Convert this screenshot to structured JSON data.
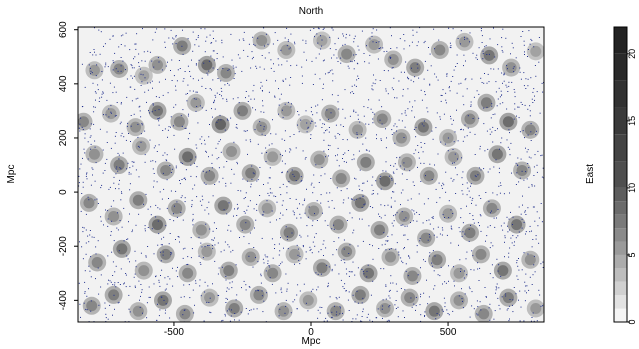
{
  "chart_data": {
    "type": "heatmap",
    "title": "North",
    "xlabel": "Mpc",
    "ylabel": "Mpc",
    "xlim": [
      -850,
      850
    ],
    "ylim": [
      -480,
      610
    ],
    "x_ticks": [
      -500,
      0,
      500
    ],
    "x_tick_labels": [
      "-500",
      "0",
      "500"
    ],
    "y_ticks": [
      -400,
      -200,
      0,
      200,
      400,
      600
    ],
    "y_tick_labels": [
      "-400",
      "-200",
      "0",
      "200",
      "400",
      "600"
    ],
    "grid": false,
    "overlay": {
      "type": "scatter",
      "color": "#1f2e8c",
      "description_count": 2500
    },
    "heatmap": {
      "color_low": "#f2f2f2",
      "color_high": "#1a1a1a",
      "blobs": [
        [
          -790,
          450,
          10
        ],
        [
          -700,
          455,
          12
        ],
        [
          -610,
          430,
          9
        ],
        [
          -560,
          470,
          11
        ],
        [
          -470,
          540,
          13
        ],
        [
          -380,
          470,
          15
        ],
        [
          -310,
          440,
          12
        ],
        [
          -180,
          560,
          11
        ],
        [
          -90,
          525,
          10
        ],
        [
          40,
          560,
          9
        ],
        [
          130,
          510,
          12
        ],
        [
          230,
          545,
          10
        ],
        [
          300,
          490,
          11
        ],
        [
          380,
          460,
          13
        ],
        [
          470,
          525,
          12
        ],
        [
          560,
          555,
          10
        ],
        [
          650,
          505,
          14
        ],
        [
          730,
          460,
          11
        ],
        [
          820,
          520,
          9
        ],
        [
          -830,
          260,
          12
        ],
        [
          -730,
          290,
          10
        ],
        [
          -640,
          240,
          11
        ],
        [
          -560,
          300,
          14
        ],
        [
          -480,
          260,
          12
        ],
        [
          -420,
          330,
          10
        ],
        [
          -330,
          250,
          16
        ],
        [
          -250,
          300,
          13
        ],
        [
          -180,
          240,
          11
        ],
        [
          -90,
          300,
          10
        ],
        [
          -20,
          250,
          9
        ],
        [
          70,
          290,
          12
        ],
        [
          170,
          230,
          10
        ],
        [
          260,
          270,
          12
        ],
        [
          330,
          200,
          11
        ],
        [
          410,
          240,
          14
        ],
        [
          500,
          200,
          10
        ],
        [
          580,
          270,
          12
        ],
        [
          640,
          330,
          13
        ],
        [
          720,
          260,
          15
        ],
        [
          800,
          230,
          12
        ],
        [
          -790,
          140,
          11
        ],
        [
          -700,
          100,
          13
        ],
        [
          -620,
          170,
          10
        ],
        [
          -530,
          80,
          12
        ],
        [
          -450,
          130,
          15
        ],
        [
          -370,
          60,
          12
        ],
        [
          -290,
          150,
          11
        ],
        [
          -220,
          70,
          13
        ],
        [
          -140,
          130,
          10
        ],
        [
          -60,
          60,
          14
        ],
        [
          30,
          120,
          11
        ],
        [
          110,
          50,
          12
        ],
        [
          200,
          110,
          13
        ],
        [
          270,
          40,
          15
        ],
        [
          350,
          110,
          11
        ],
        [
          430,
          60,
          12
        ],
        [
          520,
          130,
          10
        ],
        [
          600,
          60,
          13
        ],
        [
          680,
          140,
          14
        ],
        [
          770,
          80,
          12
        ],
        [
          -810,
          -40,
          12
        ],
        [
          -720,
          -90,
          11
        ],
        [
          -630,
          -30,
          13
        ],
        [
          -560,
          -120,
          15
        ],
        [
          -490,
          -60,
          12
        ],
        [
          -400,
          -140,
          11
        ],
        [
          -320,
          -50,
          14
        ],
        [
          -240,
          -120,
          12
        ],
        [
          -160,
          -60,
          10
        ],
        [
          -80,
          -150,
          13
        ],
        [
          10,
          -70,
          11
        ],
        [
          100,
          -120,
          12
        ],
        [
          180,
          -40,
          14
        ],
        [
          250,
          -140,
          13
        ],
        [
          340,
          -90,
          11
        ],
        [
          420,
          -170,
          12
        ],
        [
          500,
          -80,
          10
        ],
        [
          580,
          -150,
          13
        ],
        [
          660,
          -60,
          12
        ],
        [
          750,
          -120,
          14
        ],
        [
          -780,
          -260,
          12
        ],
        [
          -690,
          -210,
          14
        ],
        [
          -610,
          -290,
          11
        ],
        [
          -530,
          -230,
          13
        ],
        [
          -450,
          -300,
          12
        ],
        [
          -380,
          -220,
          10
        ],
        [
          -300,
          -290,
          13
        ],
        [
          -220,
          -240,
          11
        ],
        [
          -140,
          -300,
          12
        ],
        [
          -60,
          -230,
          10
        ],
        [
          40,
          -280,
          13
        ],
        [
          130,
          -220,
          12
        ],
        [
          210,
          -300,
          14
        ],
        [
          290,
          -240,
          11
        ],
        [
          370,
          -310,
          12
        ],
        [
          460,
          -250,
          13
        ],
        [
          540,
          -300,
          10
        ],
        [
          620,
          -230,
          12
        ],
        [
          700,
          -290,
          14
        ],
        [
          800,
          -250,
          11
        ],
        [
          -800,
          -420,
          12
        ],
        [
          -720,
          -380,
          13
        ],
        [
          -630,
          -440,
          11
        ],
        [
          -540,
          -400,
          14
        ],
        [
          -460,
          -450,
          12
        ],
        [
          -370,
          -390,
          10
        ],
        [
          -280,
          -430,
          13
        ],
        [
          -190,
          -380,
          12
        ],
        [
          -100,
          -440,
          11
        ],
        [
          -10,
          -400,
          10
        ],
        [
          90,
          -440,
          12
        ],
        [
          180,
          -380,
          13
        ],
        [
          270,
          -430,
          11
        ],
        [
          360,
          -390,
          12
        ],
        [
          450,
          -440,
          14
        ],
        [
          540,
          -400,
          11
        ],
        [
          630,
          -450,
          12
        ],
        [
          720,
          -390,
          13
        ],
        [
          820,
          -430,
          10
        ]
      ]
    },
    "colorbar": {
      "label": "East",
      "min": 0,
      "max": 22,
      "ticks": [
        0,
        5,
        10,
        15,
        20
      ],
      "tick_labels": [
        "0",
        "5",
        "10",
        "15",
        "20"
      ],
      "levels": [
        0,
        1,
        2,
        3,
        4,
        5,
        6,
        7,
        8,
        9,
        10,
        12,
        14,
        16,
        18,
        20,
        22
      ],
      "colors": [
        "#f5f5f5",
        "#e2e2e2",
        "#d0d0d0",
        "#bdbdbd",
        "#acacac",
        "#9a9a9a",
        "#8a8a8a",
        "#7a7a7a",
        "#6b6b6b",
        "#5d5d5d",
        "#4f4f4f",
        "#444444",
        "#3a3a3a",
        "#323232",
        "#2a2a2a",
        "#232323"
      ]
    }
  }
}
